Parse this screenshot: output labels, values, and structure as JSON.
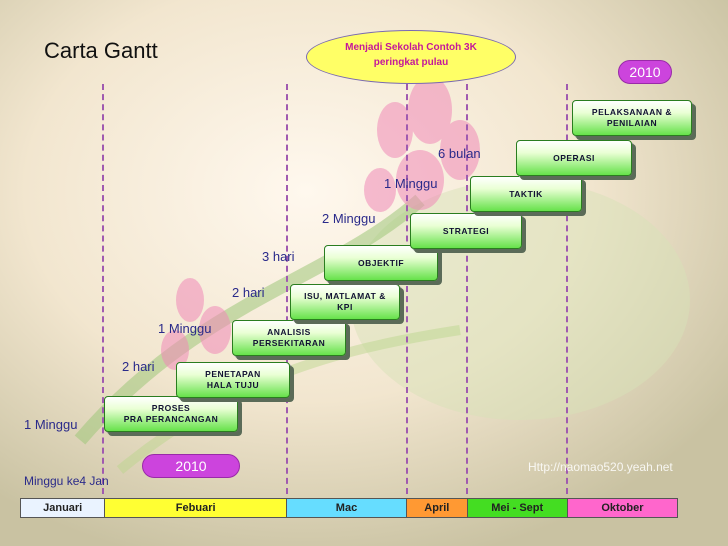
{
  "title": "Carta Gantt",
  "callout": "Menjadi Sekolah Contoh 3K\nperingkat pulau",
  "year_top": "2010",
  "year_bottom": "2010",
  "start_note": "Minggu ke4 Jan",
  "watermark": "Http://naomao520.yeah.net",
  "steps": [
    {
      "label": "PROSES\nPRA PERANCANGAN",
      "duration": "1 Minggu"
    },
    {
      "label": "PENETAPAN\nHALA TUJU",
      "duration": "2 hari"
    },
    {
      "label": "ANALISIS\nPERSEKITARAN",
      "duration": "1 Minggu"
    },
    {
      "label": "ISU, MATLAMAT &\nKPI",
      "duration": "2 hari"
    },
    {
      "label": "OBJEKTIF",
      "duration": "3 hari"
    },
    {
      "label": "STRATEGI",
      "duration": "2 Minggu"
    },
    {
      "label": "TAKTIK",
      "duration": "1 Minggu"
    },
    {
      "label": "OPERASI",
      "duration": "6 bulan"
    },
    {
      "label": "PELAKSANAAN &\nPENILAIAN",
      "duration": ""
    }
  ],
  "months": [
    {
      "label": "Januari",
      "color": "#eaf3ff"
    },
    {
      "label": "Febuari",
      "color": "#ffff33"
    },
    {
      "label": "Mac",
      "color": "#66ddff"
    },
    {
      "label": "April",
      "color": "#ff9933"
    },
    {
      "label": "Mei - Sept",
      "color": "#44dd22"
    },
    {
      "label": "Oktober",
      "color": "#ff66cc"
    }
  ]
}
